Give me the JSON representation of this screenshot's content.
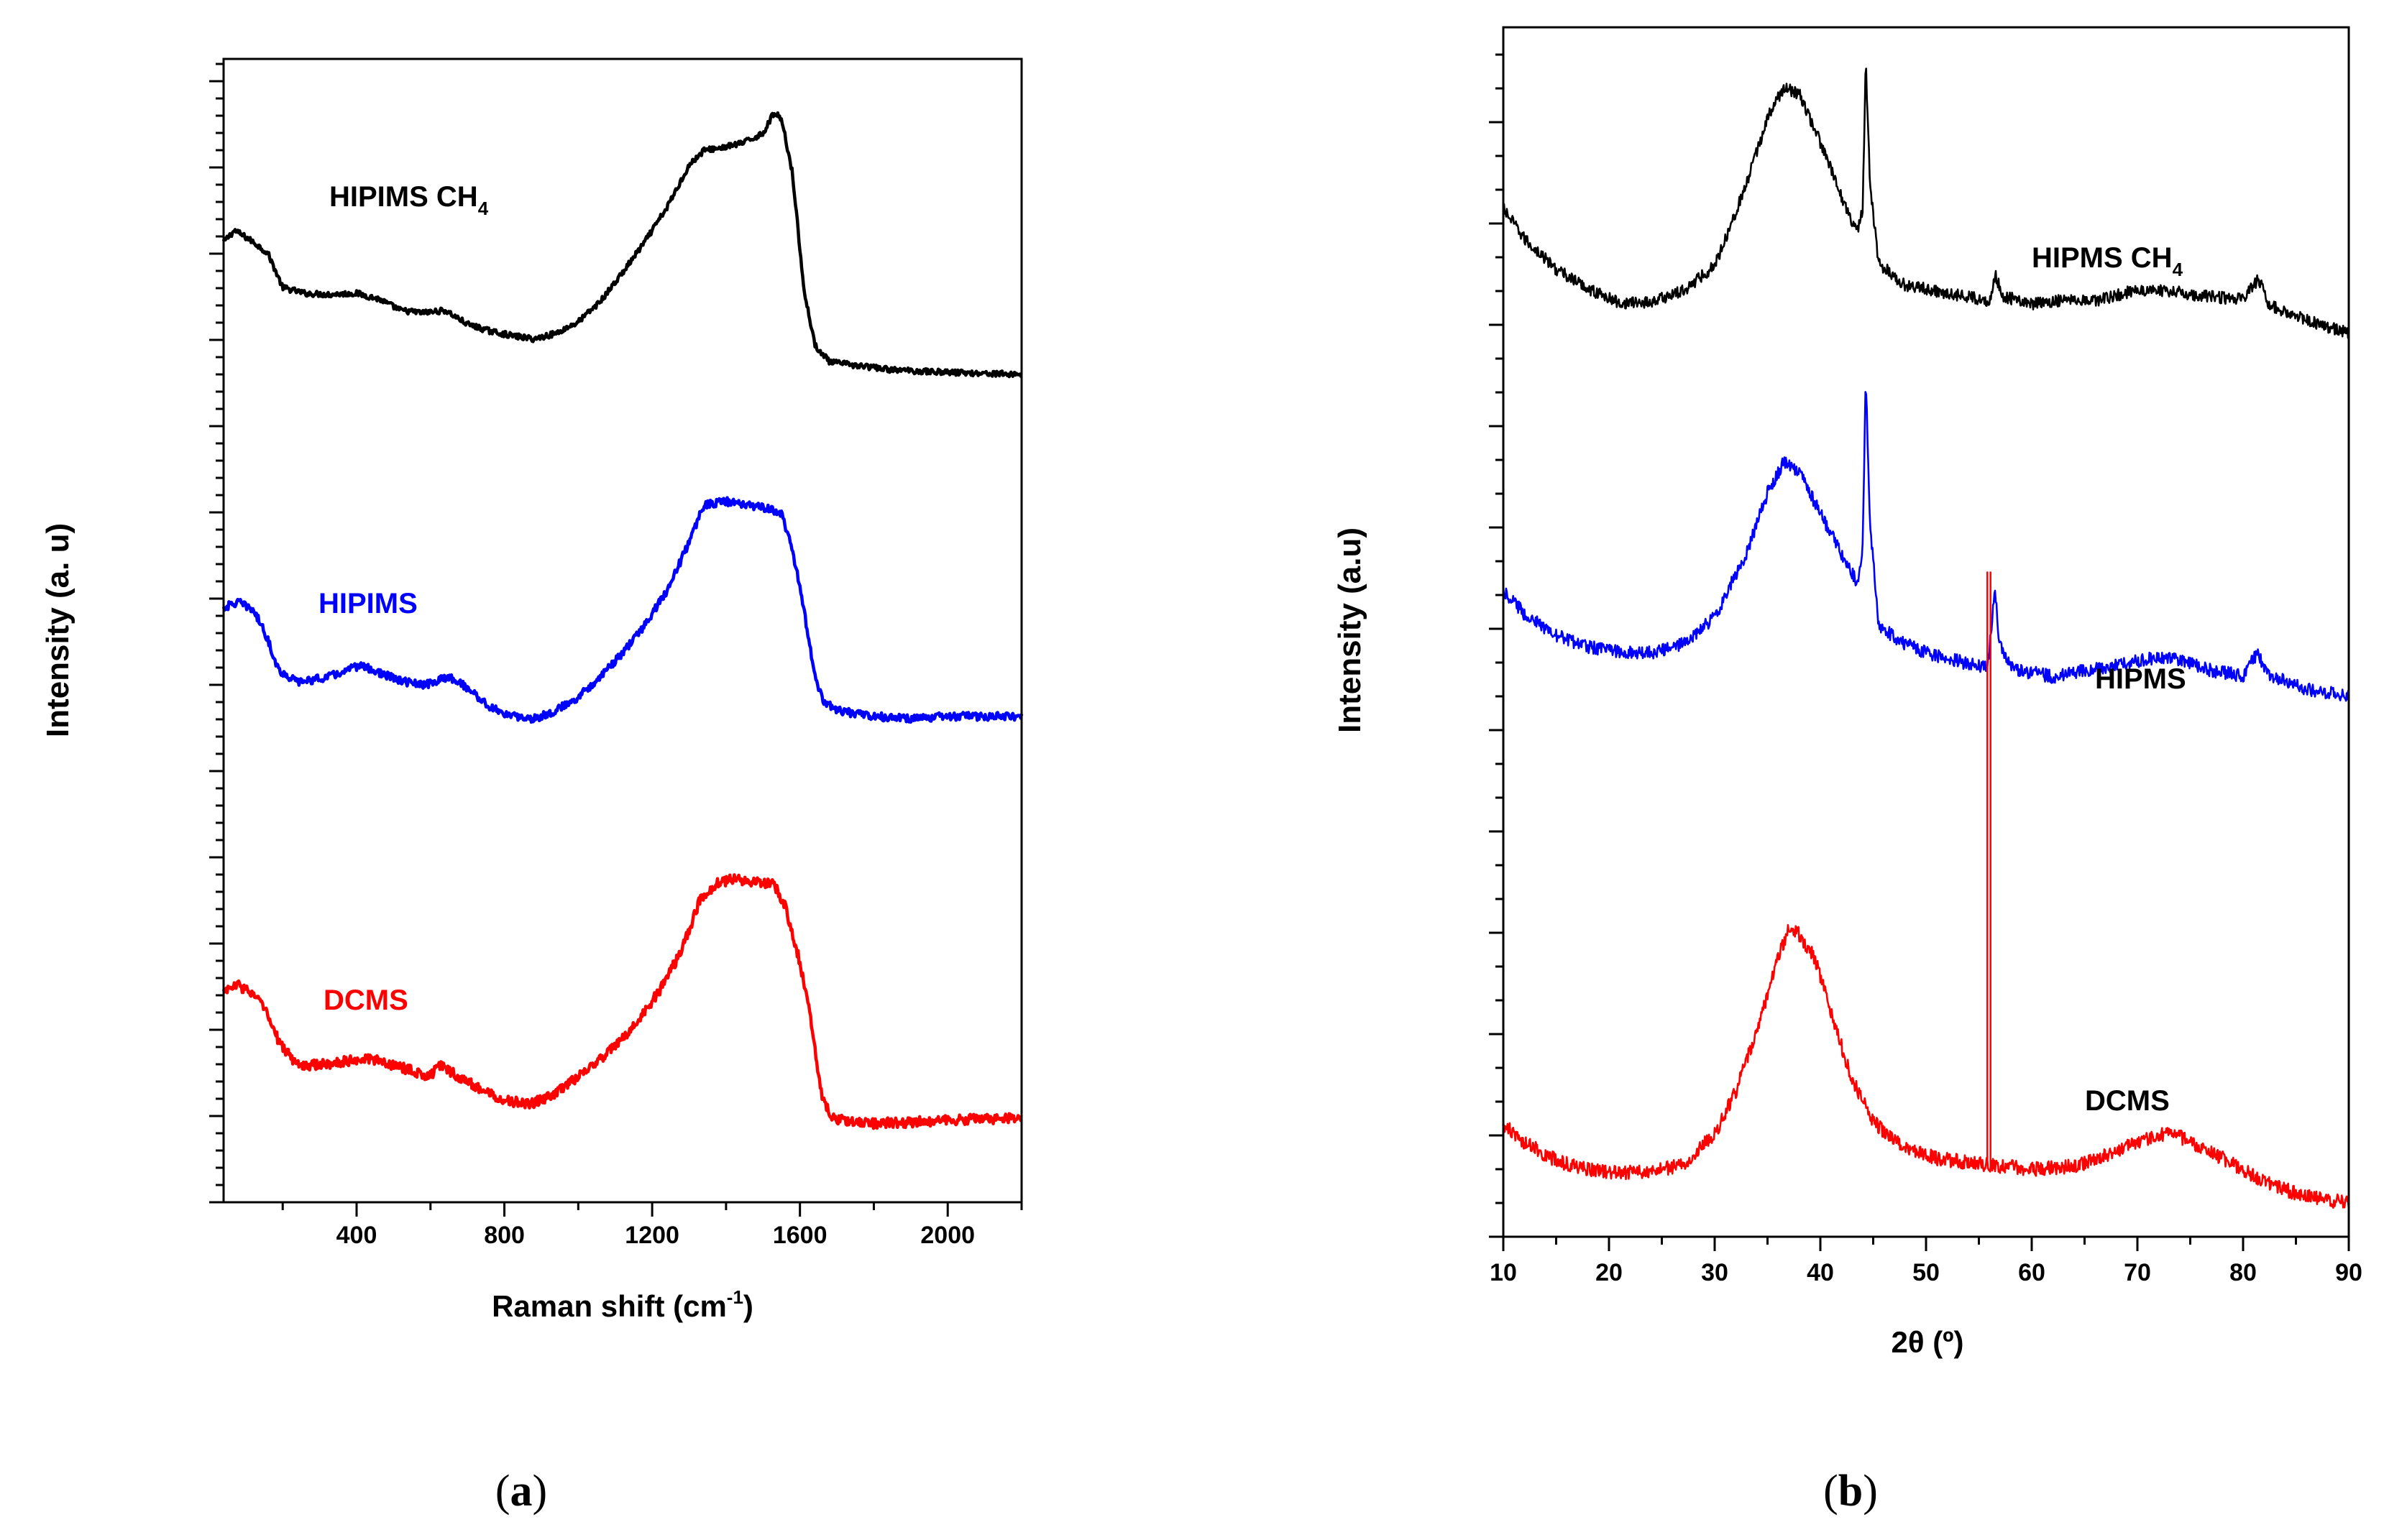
{
  "chart_data": [
    {
      "panel": "a",
      "type": "line",
      "xlabel": "Raman shift (cm",
      "xlabel_sup": "-1",
      "xlabel_end": ")",
      "ylabel": "Intensity (a. u)",
      "xlim": [
        40,
        2200
      ],
      "ylim": [
        0,
        100
      ],
      "xticks": [
        400,
        800,
        1200,
        1600,
        2000
      ],
      "y_tick_labels": false,
      "series": [
        {
          "name": "HIPIMS CH4",
          "label_main": "HIPIMS CH",
          "label_sub": "4",
          "color": "#000000",
          "points": [
            [
              40,
              84
            ],
            [
              70,
              85
            ],
            [
              120,
              84
            ],
            [
              160,
              83
            ],
            [
              200,
              80
            ],
            [
              260,
              79.5
            ],
            [
              320,
              79.4
            ],
            [
              400,
              79.5
            ],
            [
              460,
              79
            ],
            [
              520,
              78
            ],
            [
              580,
              77.8
            ],
            [
              640,
              78
            ],
            [
              700,
              76.8
            ],
            [
              760,
              76.2
            ],
            [
              820,
              75.8
            ],
            [
              880,
              75.5
            ],
            [
              940,
              76
            ],
            [
              1000,
              77
            ],
            [
              1060,
              78.8
            ],
            [
              1120,
              81.3
            ],
            [
              1180,
              84
            ],
            [
              1240,
              87
            ],
            [
              1300,
              90.7
            ],
            [
              1340,
              92
            ],
            [
              1400,
              92.3
            ],
            [
              1450,
              92.7
            ],
            [
              1500,
              93.5
            ],
            [
              1530,
              95.3
            ],
            [
              1550,
              94.8
            ],
            [
              1580,
              90
            ],
            [
              1610,
              80
            ],
            [
              1640,
              75
            ],
            [
              1680,
              73.5
            ],
            [
              1750,
              73.2
            ],
            [
              1850,
              72.8
            ],
            [
              2000,
              72.6
            ],
            [
              2200,
              72.4
            ]
          ],
          "noise": 0.25
        },
        {
          "name": "HIPIMS",
          "label": "HIPIMS",
          "color": "#0000ff",
          "points": [
            [
              40,
              52
            ],
            [
              80,
              52.5
            ],
            [
              120,
              51.8
            ],
            [
              150,
              50
            ],
            [
              190,
              46.5
            ],
            [
              240,
              45.5
            ],
            [
              300,
              45.8
            ],
            [
              360,
              46.3
            ],
            [
              410,
              47
            ],
            [
              460,
              46.3
            ],
            [
              520,
              45.6
            ],
            [
              580,
              45.2
            ],
            [
              620,
              45.6
            ],
            [
              650,
              46
            ],
            [
              700,
              45
            ],
            [
              760,
              43.3
            ],
            [
              820,
              42.5
            ],
            [
              880,
              42.3
            ],
            [
              940,
              43
            ],
            [
              1000,
              44.2
            ],
            [
              1060,
              46
            ],
            [
              1120,
              48
            ],
            [
              1180,
              50.5
            ],
            [
              1240,
              53.5
            ],
            [
              1290,
              57
            ],
            [
              1340,
              61
            ],
            [
              1400,
              61.3
            ],
            [
              1450,
              61
            ],
            [
              1500,
              60.8
            ],
            [
              1550,
              60.3
            ],
            [
              1580,
              57
            ],
            [
              1610,
              52
            ],
            [
              1640,
              46
            ],
            [
              1660,
              44
            ],
            [
              1700,
              43
            ],
            [
              1800,
              42.5
            ],
            [
              1900,
              42.3
            ],
            [
              2000,
              42.5
            ],
            [
              2200,
              42.5
            ]
          ],
          "noise": 0.35
        },
        {
          "name": "DCMS",
          "label": "DCMS",
          "color": "#ff0000",
          "points": [
            [
              40,
              18.5
            ],
            [
              80,
              19
            ],
            [
              120,
              18.2
            ],
            [
              150,
              17
            ],
            [
              190,
              14
            ],
            [
              240,
              12
            ],
            [
              300,
              12
            ],
            [
              360,
              12.3
            ],
            [
              420,
              12.6
            ],
            [
              480,
              12.2
            ],
            [
              540,
              11.6
            ],
            [
              600,
              11
            ],
            [
              620,
              12
            ],
            [
              650,
              11.5
            ],
            [
              700,
              10.5
            ],
            [
              760,
              9.5
            ],
            [
              820,
              8.8
            ],
            [
              870,
              8.6
            ],
            [
              920,
              9.2
            ],
            [
              980,
              10.5
            ],
            [
              1040,
              12
            ],
            [
              1100,
              13.6
            ],
            [
              1160,
              15.8
            ],
            [
              1220,
              18.5
            ],
            [
              1280,
              22
            ],
            [
              1330,
              26.5
            ],
            [
              1380,
              28
            ],
            [
              1430,
              28.3
            ],
            [
              1480,
              28
            ],
            [
              1530,
              27.8
            ],
            [
              1560,
              26
            ],
            [
              1600,
              21
            ],
            [
              1630,
              16
            ],
            [
              1660,
              9
            ],
            [
              1690,
              7.3
            ],
            [
              1750,
              7
            ],
            [
              1800,
              6.9
            ],
            [
              1900,
              7
            ],
            [
              2000,
              7.2
            ],
            [
              2100,
              7.3
            ],
            [
              2200,
              7.3
            ]
          ],
          "noise": 0.45
        }
      ]
    },
    {
      "panel": "b",
      "type": "line",
      "xlabel": "2θ (º)",
      "ylabel": "Intensity (a.u)",
      "xlim": [
        10,
        90
      ],
      "ylim": [
        0,
        100
      ],
      "xticks": [
        10,
        20,
        30,
        40,
        50,
        60,
        70,
        80,
        90
      ],
      "y_tick_labels": false,
      "series": [
        {
          "name": "HIPMS CH4",
          "label_main": "HIPMS CH",
          "label_sub": "4",
          "color": "#000000",
          "points": [
            [
              10,
              85
            ],
            [
              12,
              82.5
            ],
            [
              15,
              80
            ],
            [
              18,
              78.4
            ],
            [
              21,
              77.2
            ],
            [
              24,
              77.3
            ],
            [
              27,
              78.2
            ],
            [
              30,
              80.3
            ],
            [
              33,
              87
            ],
            [
              35,
              92.5
            ],
            [
              36.5,
              95
            ],
            [
              38,
              94.5
            ],
            [
              40,
              90.5
            ],
            [
              42,
              86
            ],
            [
              43.5,
              83
            ],
            [
              44,
              85
            ],
            [
              44.3,
              97
            ],
            [
              44.7,
              87
            ],
            [
              45.5,
              80.5
            ],
            [
              48,
              78.7
            ],
            [
              51,
              78.2
            ],
            [
              54,
              77.7
            ],
            [
              56,
              77.4
            ],
            [
              56.6,
              79.5
            ],
            [
              57.2,
              77.8
            ],
            [
              60,
              77.1
            ],
            [
              64,
              77.6
            ],
            [
              66,
              77.4
            ],
            [
              70,
              78.3
            ],
            [
              73,
              78.2
            ],
            [
              76,
              77.8
            ],
            [
              80,
              77.5
            ],
            [
              81.5,
              79.2
            ],
            [
              82.5,
              77
            ],
            [
              86,
              75.8
            ],
            [
              88,
              75.2
            ],
            [
              90,
              74.7
            ]
          ],
          "noise": 0.5
        },
        {
          "name": "HIPMS",
          "label": "HIPMS",
          "color": "#0000ff",
          "points": [
            [
              10,
              53.5
            ],
            [
              12,
              51.5
            ],
            [
              15,
              49.7
            ],
            [
              18,
              48.8
            ],
            [
              21,
              48.4
            ],
            [
              24,
              48.3
            ],
            [
              27,
              49
            ],
            [
              30,
              51.2
            ],
            [
              33,
              56.5
            ],
            [
              35,
              61.5
            ],
            [
              36.5,
              64
            ],
            [
              38,
              63.3
            ],
            [
              40,
              59.8
            ],
            [
              42,
              56.5
            ],
            [
              43.5,
              54
            ],
            [
              44,
              57
            ],
            [
              44.3,
              71
            ],
            [
              44.7,
              59
            ],
            [
              45.5,
              50.5
            ],
            [
              48,
              49
            ],
            [
              51,
              48
            ],
            [
              54,
              47.4
            ],
            [
              55.8,
              47
            ],
            [
              56.2,
              50.5
            ],
            [
              56.5,
              54
            ],
            [
              56.9,
              49
            ],
            [
              58,
              47
            ],
            [
              62,
              46.3
            ],
            [
              65,
              46.8
            ],
            [
              68,
              47.2
            ],
            [
              71,
              47.8
            ],
            [
              74,
              47.7
            ],
            [
              77,
              46.8
            ],
            [
              80,
              46.4
            ],
            [
              81.4,
              48.3
            ],
            [
              82.3,
              46.5
            ],
            [
              86,
              45.3
            ],
            [
              88,
              45
            ],
            [
              90,
              44.7
            ]
          ],
          "noise": 0.55
        },
        {
          "name": "DCMS",
          "label": "DCMS",
          "color": "#ff0000",
          "points": [
            [
              10,
              9.3
            ],
            [
              12,
              7.8
            ],
            [
              15,
              6.3
            ],
            [
              18,
              5.6
            ],
            [
              21,
              5.3
            ],
            [
              24,
              5.3
            ],
            [
              27,
              6
            ],
            [
              30,
              8.5
            ],
            [
              32,
              12
            ],
            [
              34,
              17
            ],
            [
              36,
              23
            ],
            [
              37,
              25.5
            ],
            [
              38,
              25
            ],
            [
              39.5,
              23
            ],
            [
              41,
              18.5
            ],
            [
              43,
              13
            ],
            [
              45,
              9.5
            ],
            [
              48,
              7.3
            ],
            [
              51,
              6.5
            ],
            [
              55,
              6
            ],
            [
              60,
              5.6
            ],
            [
              63,
              5.7
            ],
            [
              66,
              6.3
            ],
            [
              69,
              7.5
            ],
            [
              72,
              8.5
            ],
            [
              74,
              8.3
            ],
            [
              77,
              7
            ],
            [
              80,
              5.5
            ],
            [
              83,
              4.2
            ],
            [
              86,
              3.3
            ],
            [
              88,
              3
            ],
            [
              90,
              2.8
            ]
          ],
          "noise": 0.6,
          "artifact_x": [
            55.8,
            56.1
          ]
        }
      ]
    }
  ],
  "captions": {
    "a": "a",
    "b": "b"
  }
}
